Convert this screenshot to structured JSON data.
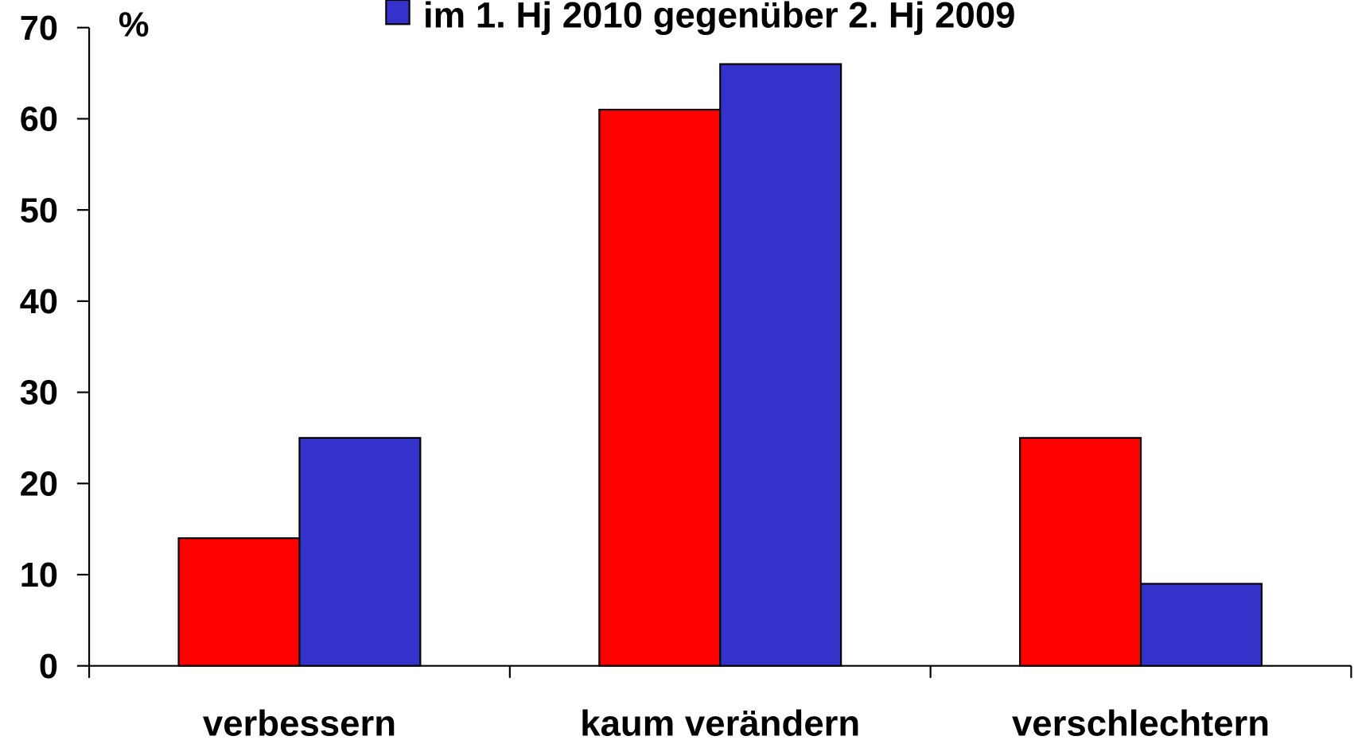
{
  "chart_data": {
    "type": "bar",
    "y_label": "%",
    "categories": [
      "verbessern",
      "kaum verändern",
      "verschlechtern"
    ],
    "series": [
      {
        "color": "#ff0000",
        "values": [
          14,
          61,
          25
        ]
      },
      {
        "name": "im 1. Hj 2010 gegenüber 2. Hj 2009",
        "color": "#3333cc",
        "values": [
          25,
          66,
          9
        ]
      }
    ],
    "ylim": [
      0,
      70
    ],
    "yticks": [
      0,
      10,
      20,
      30,
      40,
      50,
      60,
      70
    ]
  }
}
